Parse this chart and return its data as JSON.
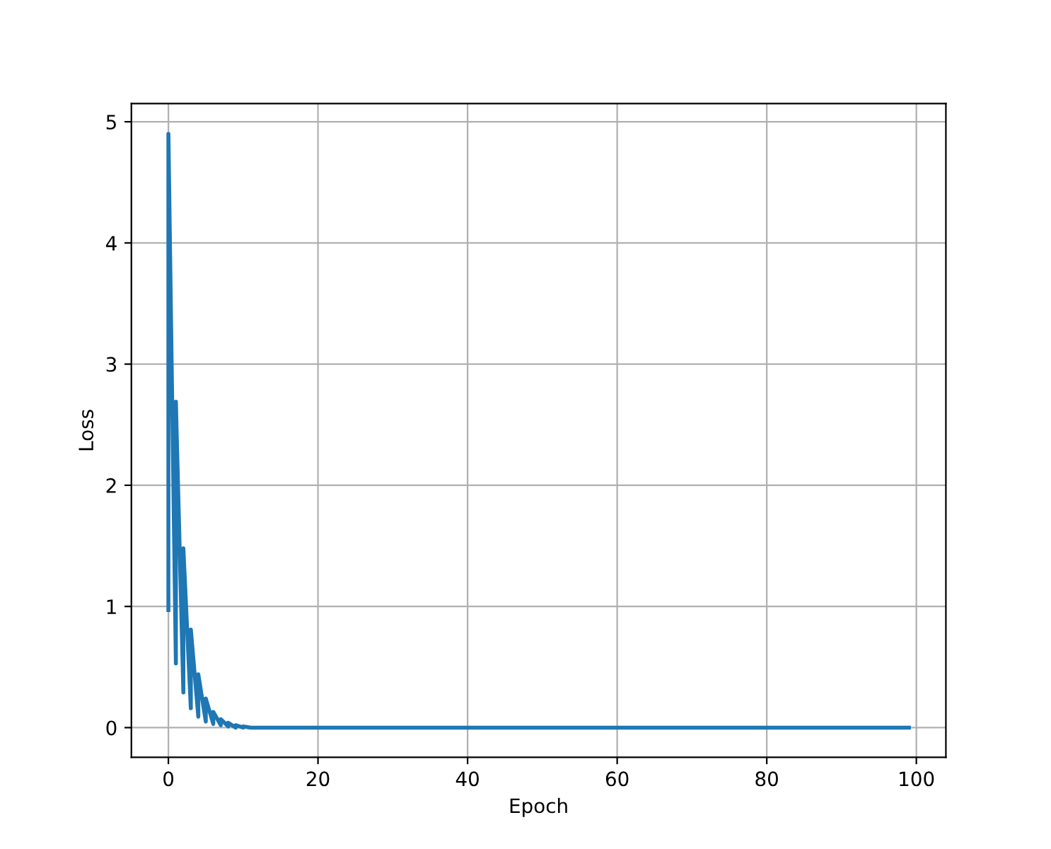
{
  "chart_data": {
    "type": "line",
    "xlabel": "Epoch",
    "ylabel": "Loss",
    "x": [
      0,
      0,
      1,
      1,
      2,
      2,
      3,
      3,
      4,
      4,
      5,
      5,
      6,
      6,
      7,
      7,
      8,
      8,
      9,
      9,
      10,
      10,
      11,
      11,
      12,
      14,
      16,
      20,
      30,
      40,
      50,
      60,
      70,
      80,
      90,
      99
    ],
    "series": [
      {
        "color": "#1f77b4",
        "values": [
          0.97,
          4.9,
          0.53,
          2.69,
          0.29,
          1.48,
          0.16,
          0.81,
          0.09,
          0.44,
          0.05,
          0.24,
          0.03,
          0.13,
          0.02,
          0.07,
          0.01,
          0.04,
          0.0,
          0.02,
          0.0,
          0.01,
          0.0,
          0.0,
          0.0,
          0.0,
          0.0,
          0.0,
          0.0,
          0.0,
          0.0,
          0.0,
          0.0,
          0.0,
          0.0,
          0.0
        ]
      }
    ],
    "xlim": [
      -4.95,
      103.95
    ],
    "ylim": [
      -0.245,
      5.15
    ],
    "xticks": [
      0,
      20,
      40,
      60,
      80,
      100
    ],
    "yticks": [
      0,
      1,
      2,
      3,
      4,
      5
    ],
    "grid": true,
    "marker": "none",
    "line_style": "solid"
  }
}
